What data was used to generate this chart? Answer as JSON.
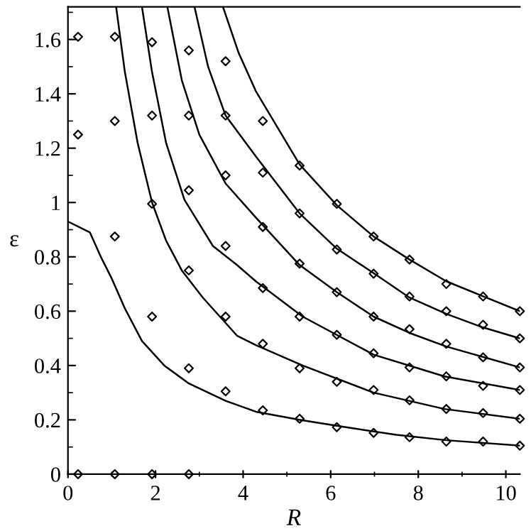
{
  "chart_data": {
    "type": "line",
    "xlabel": "R",
    "ylabel": "ε",
    "xlim": [
      0,
      10.32
    ],
    "ylim": [
      0,
      1.72
    ],
    "xticks": [
      0,
      2,
      4,
      6,
      8,
      10
    ],
    "yticks": [
      0,
      0.2,
      0.4,
      0.6,
      0.8,
      1,
      1.2,
      1.4,
      1.6
    ],
    "grid": false,
    "legend": false,
    "series": [
      {
        "type": "line",
        "color": "#000000",
        "marker": "none",
        "line_style": "solid",
        "x": [
          0,
          0.5,
          0.75,
          1.0,
          1.3,
          1.69,
          2.2,
          2.76,
          3.6,
          4.29,
          5.3,
          6.14,
          7.5,
          8.64,
          10.32
        ],
        "values": [
          0.93,
          0.89,
          0.8,
          0.72,
          0.61,
          0.49,
          0.4,
          0.334,
          0.27,
          0.23,
          0.2,
          0.178,
          0.145,
          0.125,
          0.105
        ]
      },
      {
        "type": "line",
        "color": "#000000",
        "marker": "none",
        "line_style": "solid",
        "x": [
          1.1,
          1.3,
          1.59,
          1.92,
          2.24,
          2.6,
          3.08,
          3.86,
          4.29,
          5.36,
          6.98,
          8.6,
          10.32
        ],
        "values": [
          1.72,
          1.48,
          1.22,
          1.0,
          0.86,
          0.75,
          0.65,
          0.51,
          0.475,
          0.4,
          0.3,
          0.24,
          0.204
        ]
      },
      {
        "type": "line",
        "color": "#000000",
        "marker": "none",
        "line_style": "solid",
        "x": [
          1.69,
          1.92,
          2.24,
          2.66,
          3.31,
          3.86,
          4.29,
          5.36,
          6.98,
          8.6,
          10.32
        ],
        "values": [
          1.72,
          1.48,
          1.22,
          1.01,
          0.84,
          0.77,
          0.71,
          0.58,
          0.44,
          0.36,
          0.31
        ]
      },
      {
        "type": "line",
        "color": "#000000",
        "marker": "none",
        "line_style": "solid",
        "x": [
          2.27,
          2.6,
          3.0,
          3.6,
          4.29,
          5.29,
          6.14,
          6.98,
          7.8,
          8.64,
          10.32
        ],
        "values": [
          1.72,
          1.45,
          1.25,
          1.07,
          0.945,
          0.77,
          0.67,
          0.58,
          0.52,
          0.47,
          0.393
        ]
      },
      {
        "type": "line",
        "color": "#000000",
        "marker": "none",
        "line_style": "solid",
        "x": [
          2.89,
          3.2,
          3.6,
          4.29,
          5.29,
          6.14,
          6.98,
          7.8,
          8.64,
          9.48,
          10.32
        ],
        "values": [
          1.72,
          1.5,
          1.32,
          1.17,
          0.96,
          0.83,
          0.74,
          0.65,
          0.59,
          0.54,
          0.5
        ]
      },
      {
        "type": "line",
        "color": "#000000",
        "marker": "none",
        "line_style": "solid",
        "x": [
          3.54,
          3.9,
          4.29,
          5.29,
          6.14,
          6.98,
          7.8,
          8.64,
          9.48,
          10.32
        ],
        "values": [
          1.72,
          1.55,
          1.41,
          1.14,
          0.99,
          0.875,
          0.79,
          0.71,
          0.655,
          0.6
        ]
      },
      {
        "type": "scatter",
        "color": "#000000",
        "marker": "diamond",
        "x": [
          0.23,
          0.23,
          0.23,
          1.07,
          1.07,
          1.07,
          1.07,
          1.92,
          1.92,
          1.92,
          1.92,
          1.92,
          2.76,
          2.76,
          2.76,
          2.76,
          2.76,
          2.76,
          3.6,
          3.6,
          3.6,
          3.6,
          3.6,
          3.6,
          4.45,
          4.45,
          4.45,
          4.45,
          4.45,
          4.45,
          5.29,
          5.29,
          5.29,
          5.29,
          5.29,
          5.29,
          6.14,
          6.14,
          6.14,
          6.14,
          6.14,
          6.14,
          6.98,
          6.98,
          6.98,
          6.98,
          6.98,
          6.98,
          7.8,
          7.8,
          7.8,
          7.8,
          7.8,
          7.8,
          8.64,
          8.64,
          8.64,
          8.64,
          8.64,
          8.64,
          9.48,
          9.48,
          9.48,
          9.48,
          9.48,
          9.48,
          10.32,
          10.32,
          10.32,
          10.32,
          10.32,
          10.32
        ],
        "values": [
          1.61,
          1.25,
          0,
          1.61,
          1.3,
          0.875,
          0,
          1.59,
          1.32,
          0.995,
          0.58,
          0,
          1.56,
          1.32,
          1.045,
          0.75,
          0.39,
          0,
          1.52,
          1.32,
          1.1,
          0.84,
          0.58,
          0.305,
          1.3,
          1.11,
          0.91,
          0.685,
          0.48,
          0.235,
          1.136,
          0.96,
          0.775,
          0.58,
          0.39,
          0.204,
          0.995,
          0.827,
          0.67,
          0.513,
          0.34,
          0.173,
          0.875,
          0.738,
          0.58,
          0.445,
          0.31,
          0.152,
          0.79,
          0.654,
          0.534,
          0.393,
          0.272,
          0.136,
          0.7,
          0.6,
          0.48,
          0.36,
          0.24,
          0.12,
          0.654,
          0.55,
          0.43,
          0.325,
          0.225,
          0.12,
          0.6,
          0.5,
          0.393,
          0.31,
          0.204,
          0.105
        ]
      }
    ]
  }
}
